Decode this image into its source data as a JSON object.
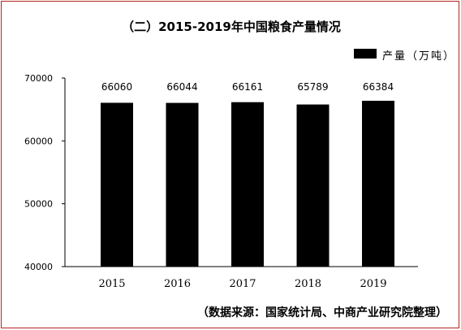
{
  "chart_data": {
    "type": "bar",
    "title": "（二）2015-2019年中国粮食产量情况",
    "categories": [
      "2015",
      "2016",
      "2017",
      "2018",
      "2019"
    ],
    "series": [
      {
        "name": "产量（万吨）",
        "values": [
          66060,
          66044,
          66161,
          65789,
          66384
        ],
        "color": "#000000"
      }
    ],
    "data_labels": [
      "66060",
      "66044",
      "66161",
      "65789",
      "66384"
    ],
    "ylim": [
      40000,
      70000
    ],
    "yticks": [
      40000,
      50000,
      60000,
      70000
    ],
    "ytick_labels": [
      "40000",
      "50000",
      "60000",
      "70000"
    ],
    "grid": false,
    "legend_position": "top-right",
    "xlabel": "",
    "ylabel": ""
  },
  "source_note": "（数据来源：国家统计局、中商产业研究院整理）",
  "colors": {
    "bar": "#000000",
    "axis": "#000000",
    "frame_border": "#b3261e",
    "background": "#ffffff"
  }
}
